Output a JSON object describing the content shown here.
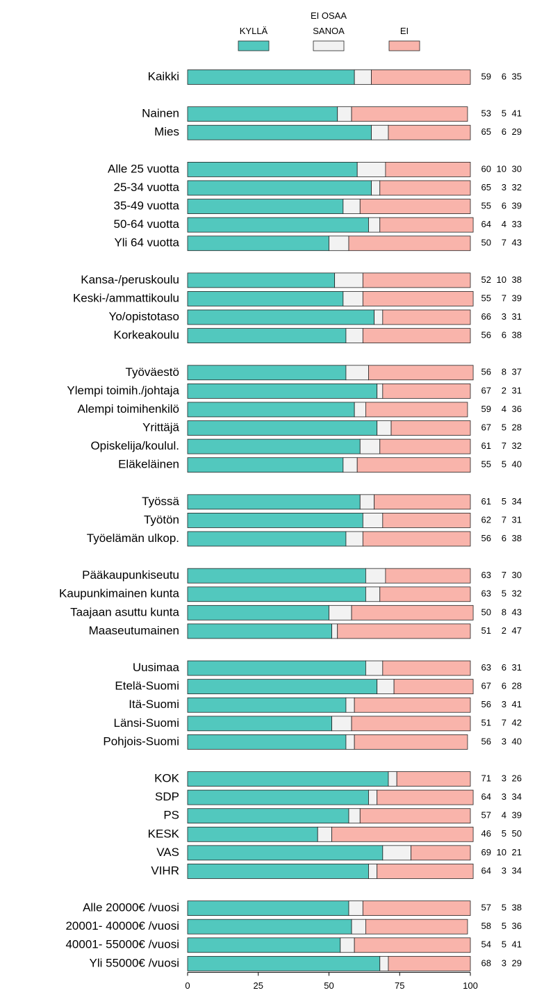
{
  "chart_data": {
    "type": "stacked-bar-horizontal",
    "categories": [
      "Kaikki",
      null,
      "Nainen",
      "Mies",
      null,
      "Alle 25 vuotta",
      "25-34 vuotta",
      "35-49 vuotta",
      "50-64 vuotta",
      "Yli 64 vuotta",
      null,
      "Kansa-/peruskoulu",
      "Keski-/ammattikoulu",
      "Yo/opistotaso",
      "Korkeakoulu",
      null,
      "Työväestö",
      "Ylempi toimih./johtaja",
      "Alempi toimihenkilö",
      "Yrittäjä",
      "Opiskelija/koulul.",
      "Eläkeläinen",
      null,
      "Työssä",
      "Työtön",
      "Työelämän ulkop.",
      null,
      "Pääkaupunkiseutu",
      "Kaupunkimainen kunta",
      "Taajaan asuttu kunta",
      "Maaseutumainen",
      null,
      "Uusimaa",
      "Etelä-Suomi",
      "Itä-Suomi",
      "Länsi-Suomi",
      "Pohjois-Suomi",
      null,
      "KOK",
      "SDP",
      "PS",
      "KESK",
      "VAS",
      "VIHR",
      null,
      "Alle 20000€ /vuosi",
      "20001- 40000€ /vuosi",
      "40001- 55000€ /vuosi",
      "Yli 55000€ /vuosi"
    ],
    "series": [
      {
        "name": "KYLLÄ",
        "color": "#52c8be",
        "values": [
          59,
          null,
          53,
          65,
          null,
          60,
          65,
          55,
          64,
          50,
          null,
          52,
          55,
          66,
          56,
          null,
          56,
          67,
          59,
          67,
          61,
          55,
          null,
          61,
          62,
          56,
          null,
          63,
          63,
          50,
          51,
          null,
          63,
          67,
          56,
          51,
          56,
          null,
          71,
          64,
          57,
          46,
          69,
          64,
          null,
          57,
          58,
          54,
          68
        ]
      },
      {
        "name": "EI OSAA SANOA",
        "color": "#f2f2f2",
        "values": [
          6,
          null,
          5,
          6,
          null,
          10,
          3,
          6,
          4,
          7,
          null,
          10,
          7,
          3,
          6,
          null,
          8,
          2,
          4,
          5,
          7,
          5,
          null,
          5,
          7,
          6,
          null,
          7,
          5,
          8,
          2,
          null,
          6,
          6,
          3,
          7,
          3,
          null,
          3,
          3,
          4,
          5,
          10,
          3,
          null,
          5,
          5,
          5,
          3
        ]
      },
      {
        "name": "EI",
        "color": "#f9b4ab",
        "values": [
          35,
          null,
          41,
          29,
          null,
          30,
          32,
          39,
          33,
          43,
          null,
          38,
          39,
          31,
          38,
          null,
          37,
          31,
          36,
          28,
          32,
          40,
          null,
          34,
          31,
          38,
          null,
          30,
          32,
          43,
          47,
          null,
          31,
          28,
          41,
          42,
          40,
          null,
          26,
          34,
          39,
          50,
          21,
          34,
          null,
          38,
          36,
          41,
          29
        ]
      }
    ],
    "xlim": [
      0,
      100
    ],
    "xticks": [
      0,
      25,
      50,
      75,
      100
    ]
  }
}
